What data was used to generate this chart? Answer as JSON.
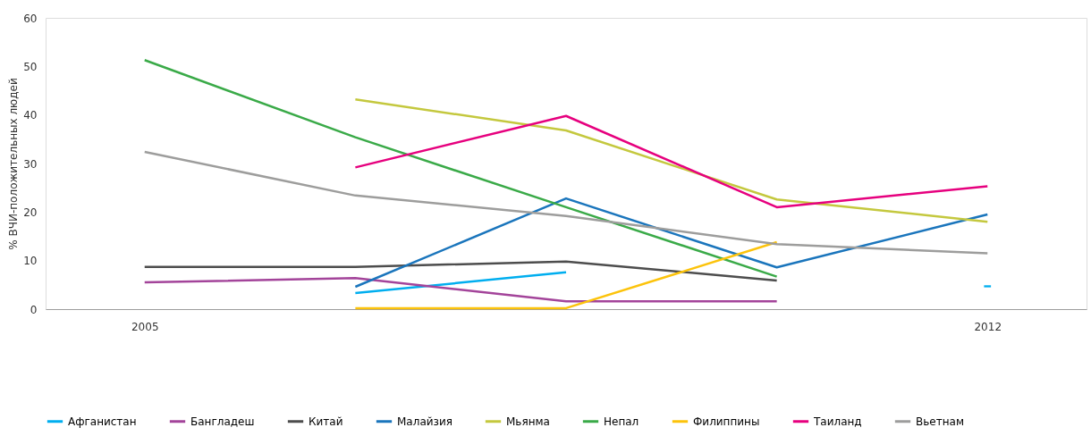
{
  "chart_data": {
    "type": "line",
    "ylabel": "% ВЧИ-положительных людей",
    "categories": [
      "2005",
      null,
      null,
      null,
      "2012"
    ],
    "ylim": [
      0,
      60
    ],
    "yticks": [
      0,
      10,
      20,
      30,
      40,
      50,
      60
    ],
    "grid": false,
    "legend": "bottom",
    "marker": "none",
    "line_style": "solid",
    "series": [
      {
        "name": "Афганистан",
        "color": "#00aeef",
        "values": [
          null,
          3.3,
          7.6,
          null,
          4.7
        ]
      },
      {
        "name": "Бангладеш",
        "color": "#a3449a",
        "values": [
          5.5,
          6.4,
          1.6,
          1.6,
          null
        ]
      },
      {
        "name": "Китай",
        "color": "#4d4d4d",
        "values": [
          8.7,
          8.7,
          9.8,
          5.9,
          null
        ]
      },
      {
        "name": "Малайзия",
        "color": "#1a75bc",
        "values": [
          null,
          4.6,
          22.8,
          8.6,
          19.5
        ]
      },
      {
        "name": "Мьянма",
        "color": "#c4c83e",
        "values": [
          null,
          43.2,
          36.8,
          22.6,
          18.0
        ]
      },
      {
        "name": "Непал",
        "color": "#3aaa48",
        "values": [
          51.3,
          35.4,
          21.0,
          6.7,
          null
        ]
      },
      {
        "name": "Филиппины",
        "color": "#fcc30b",
        "values": [
          null,
          0.2,
          0.2,
          13.8,
          null
        ]
      },
      {
        "name": "Таиланд",
        "color": "#e6007e",
        "values": [
          null,
          29.2,
          39.8,
          21.0,
          25.3
        ]
      },
      {
        "name": "Вьетнам",
        "color": "#9d9d9c",
        "values": [
          32.4,
          23.4,
          19.2,
          13.4,
          11.5
        ]
      }
    ]
  }
}
